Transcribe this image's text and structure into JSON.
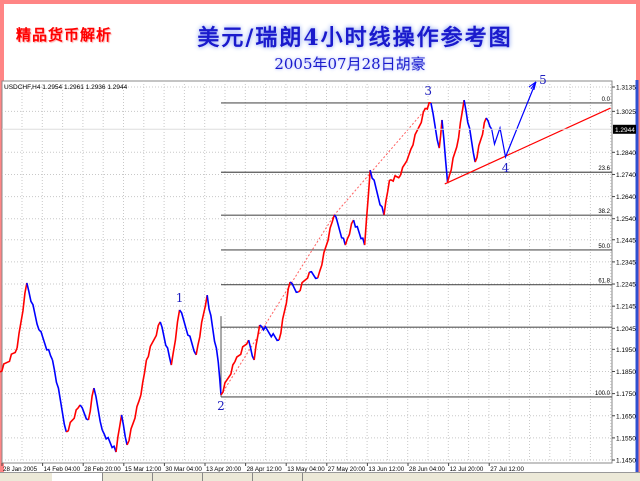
{
  "header": {
    "brand": "精品货币解析",
    "title": "美元/瑞朗4小时线操作参考图",
    "subtitle": "2005年07月28日胡豪"
  },
  "colors": {
    "frame": "#ff8585",
    "up": "#ff0000",
    "down": "#0000ff",
    "title": "#1a1acc",
    "fib": "#555555",
    "trendline": "#ff0000",
    "projection": "#0000ff"
  },
  "chart_data": {
    "type": "line",
    "symbol_info": "USDCHF,H4  1.2954 1.2961 1.2936 1.2944",
    "ylim": [
      1.14,
      1.3175
    ],
    "y_ticks": [
      "1.3135",
      "1.3025",
      "1.2840",
      "1.2740",
      "1.2640",
      "1.2540",
      "1.2445",
      "1.2345",
      "1.2245",
      "1.2145",
      "1.2045",
      "1.1950",
      "1.1850",
      "1.1750",
      "1.1650",
      "1.1550",
      "1.1450"
    ],
    "current_price": "1.2944",
    "x_ticks": [
      "28 Jan 2005",
      "14 Feb 04:00",
      "28 Feb 20:00",
      "15 Mar 12:00",
      "30 Mar 04:00",
      "13 Apr 20:00",
      "28 Apr 12:00",
      "13 May 04:00",
      "27 May 20:00",
      "13 Jun 12:00",
      "28 Jun 04:00",
      "12 Jul 20:00",
      "27 Jul 12:00"
    ],
    "grid": true,
    "series": [
      {
        "points": [
          [
            "2005-01-28",
            1.1848
          ],
          [
            "2005-02-04",
            1.1956
          ],
          [
            "2005-02-08",
            1.225
          ],
          [
            "2005-02-13",
            1.2037
          ],
          [
            "2005-02-18",
            1.1902
          ],
          [
            "2005-02-23",
            1.1577
          ],
          [
            "2005-02-28",
            1.1699
          ],
          [
            "2005-03-03",
            1.1631
          ],
          [
            "2005-03-05",
            1.1775
          ],
          [
            "2005-03-08",
            1.1586
          ],
          [
            "2005-03-13",
            1.1486
          ],
          [
            "2005-03-15",
            1.1654
          ],
          [
            "2005-03-17",
            1.1518
          ],
          [
            "2005-03-22",
            1.1744
          ],
          [
            "2005-03-24",
            1.1902
          ],
          [
            "2005-03-29",
            1.2074
          ],
          [
            "2005-04-02",
            1.1879
          ],
          [
            "2005-04-05",
            1.2128
          ],
          [
            "2005-04-11",
            1.1925
          ],
          [
            "2005-04-15",
            1.2195
          ],
          [
            "2005-04-19",
            1.1893
          ],
          [
            "2005-04-20",
            1.1744
          ],
          [
            "2005-04-25",
            1.1893
          ],
          [
            "2005-04-30",
            1.1992
          ],
          [
            "2005-05-02",
            1.1902
          ],
          [
            "2005-05-04",
            1.206
          ],
          [
            "2005-05-11",
            1.1992
          ],
          [
            "2005-05-15",
            1.2254
          ],
          [
            "2005-05-18",
            1.2209
          ],
          [
            "2005-05-22",
            1.2299
          ],
          [
            "2005-05-25",
            1.2272
          ],
          [
            "2005-05-31",
            1.2557
          ],
          [
            "2005-06-04",
            1.2421
          ],
          [
            "2005-06-07",
            1.2534
          ],
          [
            "2005-06-11",
            1.2421
          ],
          [
            "2005-06-13",
            1.276
          ],
          [
            "2005-06-18",
            1.2557
          ],
          [
            "2005-06-20",
            1.2715
          ],
          [
            "2005-06-24",
            1.2737
          ],
          [
            "2005-06-27",
            1.2828
          ],
          [
            "2005-07-03",
            1.304
          ],
          [
            "2005-07-05",
            1.3063
          ],
          [
            "2005-07-08",
            1.2859
          ],
          [
            "2005-07-09",
            1.2986
          ],
          [
            "2005-07-11",
            1.2706
          ],
          [
            "2005-07-15",
            1.2905
          ],
          [
            "2005-07-17",
            1.3076
          ],
          [
            "2005-07-21",
            1.2796
          ],
          [
            "2005-07-25",
            1.2995
          ],
          [
            "2005-07-27",
            1.2944
          ]
        ]
      }
    ],
    "fibonacci": {
      "start_date": "2005-04-20",
      "levels": [
        {
          "label": "0.0",
          "price": 1.3063
        },
        {
          "label": "23.6",
          "price": 1.275
        },
        {
          "label": "38.2",
          "price": 1.2556
        },
        {
          "label": "50.0",
          "price": 1.2399
        },
        {
          "label": "61.8",
          "price": 1.2242
        },
        {
          "label": "",
          "price": 1.205
        },
        {
          "label": "100.0",
          "price": 1.1735
        }
      ]
    },
    "waves": [
      {
        "label": "1",
        "date": "2005-04-05",
        "price": 1.2128,
        "pos": "above"
      },
      {
        "label": "2",
        "date": "2005-04-20",
        "price": 1.1744,
        "pos": "below"
      },
      {
        "label": "3",
        "date": "2005-07-04",
        "price": 1.3063,
        "pos": "above"
      },
      {
        "label": "4",
        "date": "2005-08-01",
        "price": 1.2819,
        "pos": "below"
      },
      {
        "label": "5",
        "date": "2005-08-12",
        "price": 1.3158,
        "pos": "right"
      }
    ],
    "projection": [
      [
        "2005-07-27",
        1.2944
      ],
      [
        "2005-07-28",
        1.2877
      ],
      [
        "2005-07-30",
        1.295
      ],
      [
        "2005-08-01",
        1.2819
      ],
      [
        "2005-08-12",
        1.3158
      ]
    ],
    "trendline": [
      [
        "2005-07-10",
        1.2697
      ],
      [
        "2005-09-08",
        1.304
      ]
    ],
    "dashed_channel": [
      [
        "2005-04-20",
        1.1744
      ],
      [
        "2005-05-31",
        1.2557
      ],
      [
        "2005-07-05",
        1.3063
      ]
    ]
  }
}
